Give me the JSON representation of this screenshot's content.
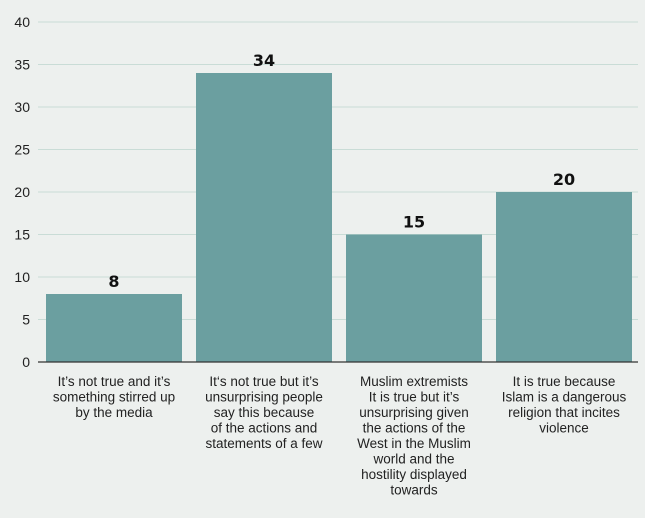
{
  "chart_data": {
    "type": "bar",
    "categories": [
      "It’s not true and it’s something stirred up by the media",
      "It‘s not true but it’s unsurprising people say this because of the actions and statements of a few",
      "Muslim extremists It is true but it’s unsurprising given the actions of the West in the Muslim world and the hostility displayed towards",
      "It is true because Islam is a dangerous religion that incites violence"
    ],
    "category_lines": [
      [
        "It’s not true and it’s",
        "something stirred up",
        "by the media"
      ],
      [
        "It‘s not true but it’s",
        "unsurprising people",
        "say this because",
        "of the actions and",
        "statements of a few"
      ],
      [
        "Muslim extremists",
        "It is true but it’s",
        "unsurprising given",
        "the actions of the",
        "West in the Muslim",
        "world and the",
        "hostility displayed",
        "towards"
      ],
      [
        "It is true because",
        "Islam is a dangerous",
        "religion that incites",
        "violence"
      ]
    ],
    "values": [
      8,
      34,
      15,
      20
    ],
    "data_labels": [
      "8",
      "34",
      "15",
      "20"
    ],
    "ylim": [
      0,
      40
    ],
    "yticks": [
      "0",
      "5",
      "10",
      "15",
      "20",
      "25",
      "30",
      "35",
      "40"
    ],
    "grid": true,
    "colors": {
      "bar": "#6b9fa0",
      "grid": "#c9dcd6",
      "axis": "#333333",
      "background": "#edf0ee"
    }
  }
}
